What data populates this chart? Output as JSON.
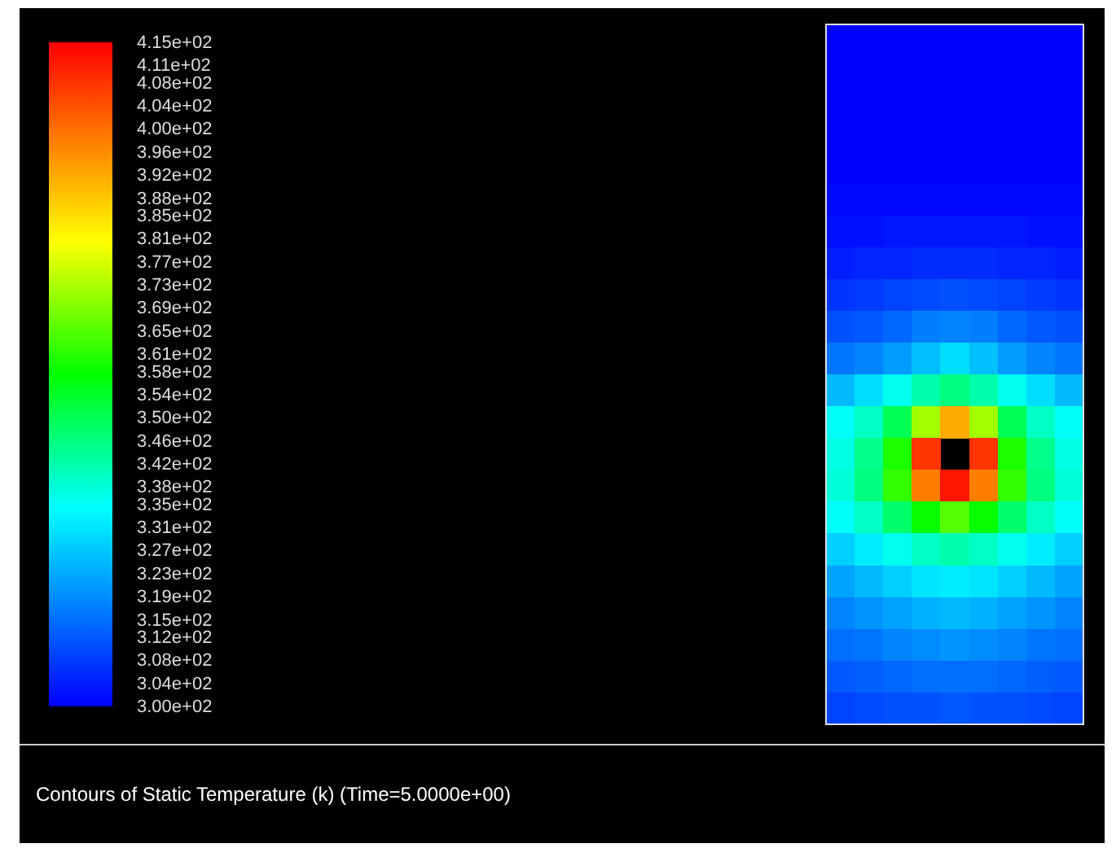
{
  "chart_data": {
    "type": "heatmap",
    "title": "Contours of Static Temperature (k)  (Time=5.0000e+00)",
    "categories": [
      null,
      null,
      null,
      null,
      null,
      null,
      null,
      null,
      null
    ],
    "y_categories": [
      null,
      null,
      null,
      null,
      null,
      null,
      null,
      null,
      null,
      null,
      null,
      null,
      null,
      null,
      null,
      null,
      null,
      null,
      null,
      null,
      null,
      null
    ],
    "clim": [
      300,
      415
    ],
    "cticks": [
      {
        "value": 300,
        "label": "3.00e+02"
      },
      {
        "value": 304,
        "label": "3.04e+02"
      },
      {
        "value": 308,
        "label": "3.08e+02"
      },
      {
        "value": 312,
        "label": "3.12e+02"
      },
      {
        "value": 315,
        "label": "3.15e+02"
      },
      {
        "value": 319,
        "label": "3.19e+02"
      },
      {
        "value": 323,
        "label": "3.23e+02"
      },
      {
        "value": 327,
        "label": "3.27e+02"
      },
      {
        "value": 331,
        "label": "3.31e+02"
      },
      {
        "value": 335,
        "label": "3.35e+02"
      },
      {
        "value": 338,
        "label": "3.38e+02"
      },
      {
        "value": 342,
        "label": "3.42e+02"
      },
      {
        "value": 346,
        "label": "3.46e+02"
      },
      {
        "value": 350,
        "label": "3.50e+02"
      },
      {
        "value": 354,
        "label": "3.54e+02"
      },
      {
        "value": 358,
        "label": "3.58e+02"
      },
      {
        "value": 361,
        "label": "3.61e+02"
      },
      {
        "value": 365,
        "label": "3.65e+02"
      },
      {
        "value": 369,
        "label": "3.69e+02"
      },
      {
        "value": 373,
        "label": "3.73e+02"
      },
      {
        "value": 377,
        "label": "3.77e+02"
      },
      {
        "value": 381,
        "label": "3.81e+02"
      },
      {
        "value": 385,
        "label": "3.85e+02"
      },
      {
        "value": 388,
        "label": "3.88e+02"
      },
      {
        "value": 392,
        "label": "3.92e+02"
      },
      {
        "value": 396,
        "label": "3.96e+02"
      },
      {
        "value": 400,
        "label": "4.00e+02"
      },
      {
        "value": 404,
        "label": "4.04e+02"
      },
      {
        "value": 408,
        "label": "4.08e+02"
      },
      {
        "value": 411,
        "label": "4.11e+02"
      },
      {
        "value": 415,
        "label": "4.15e+02"
      }
    ],
    "cells": [
      [
        300,
        300,
        300,
        300,
        300,
        300,
        300,
        300,
        300
      ],
      [
        300,
        300,
        300,
        300,
        300,
        300,
        300,
        300,
        300
      ],
      [
        300,
        300,
        300,
        300,
        300,
        300,
        300,
        300,
        300
      ],
      [
        300,
        300,
        300,
        300,
        300,
        300,
        300,
        300,
        300
      ],
      [
        300,
        300,
        300,
        300,
        300,
        300,
        300,
        300,
        300
      ],
      [
        301,
        301,
        301,
        301,
        301,
        301,
        301,
        301,
        301
      ],
      [
        302,
        302,
        303,
        303,
        303,
        303,
        303,
        302,
        302
      ],
      [
        304,
        305,
        305,
        306,
        306,
        306,
        305,
        305,
        304
      ],
      [
        307,
        308,
        309,
        310,
        311,
        310,
        309,
        308,
        307
      ],
      [
        311,
        312,
        314,
        317,
        318,
        317,
        314,
        312,
        311
      ],
      [
        316,
        318,
        321,
        326,
        330,
        326,
        321,
        318,
        316
      ],
      [
        325,
        330,
        336,
        342,
        346,
        342,
        336,
        330,
        325
      ],
      [
        335,
        340,
        350,
        372,
        392,
        372,
        350,
        340,
        335
      ],
      [
        337,
        345,
        360,
        408,
        null,
        408,
        360,
        345,
        337
      ],
      [
        338,
        346,
        362,
        398,
        412,
        398,
        362,
        346,
        338
      ],
      [
        335,
        340,
        348,
        358,
        365,
        358,
        348,
        340,
        335
      ],
      [
        328,
        332,
        336,
        340,
        342,
        340,
        336,
        332,
        328
      ],
      [
        322,
        325,
        328,
        331,
        332,
        331,
        328,
        325,
        322
      ],
      [
        318,
        320,
        322,
        324,
        325,
        324,
        322,
        320,
        318
      ],
      [
        315,
        316,
        318,
        319,
        320,
        319,
        318,
        316,
        315
      ],
      [
        312,
        313,
        314,
        315,
        315,
        315,
        314,
        313,
        312
      ],
      [
        309,
        310,
        311,
        311,
        312,
        311,
        311,
        310,
        309
      ]
    ]
  }
}
